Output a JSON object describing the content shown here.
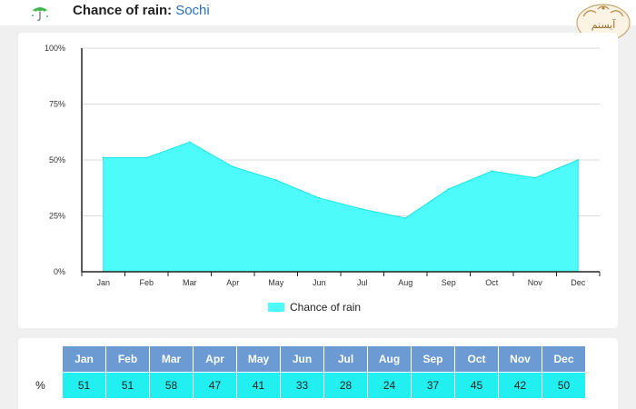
{
  "header": {
    "title_label": "Chance of rain:",
    "city": "Sochi",
    "icon": "umbrella-icon",
    "logo_text": "آیسنم"
  },
  "colors": {
    "area_fill": "#4dfbfb",
    "area_stroke": "#1ee5e5",
    "header_cell": "#6b9bd2",
    "value_cell": "#22f0f0",
    "city_link": "#2a6fb5"
  },
  "chart_data": {
    "type": "area",
    "categories": [
      "Jan",
      "Feb",
      "Mar",
      "Apr",
      "May",
      "Jun",
      "Jul",
      "Aug",
      "Sep",
      "Oct",
      "Nov",
      "Dec"
    ],
    "series": [
      {
        "name": "Chance of rain",
        "values": [
          51,
          51,
          58,
          47,
          41,
          33,
          28,
          24,
          37,
          45,
          42,
          50
        ]
      }
    ],
    "yticks": [
      "0%",
      "25%",
      "50%",
      "75%",
      "100%"
    ],
    "ylim": [
      0,
      100
    ],
    "grid": true,
    "legend": "bottom-center"
  },
  "table": {
    "row_label": "%",
    "months": [
      "Jan",
      "Feb",
      "Mar",
      "Apr",
      "May",
      "Jun",
      "Jul",
      "Aug",
      "Sep",
      "Oct",
      "Nov",
      "Dec"
    ],
    "values": [
      "51",
      "51",
      "58",
      "47",
      "41",
      "33",
      "28",
      "24",
      "37",
      "45",
      "42",
      "50"
    ]
  }
}
